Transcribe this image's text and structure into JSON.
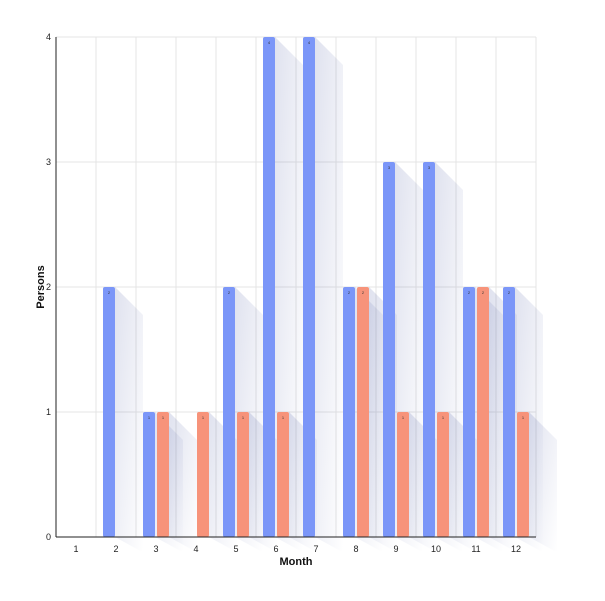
{
  "chart_data": {
    "type": "bar",
    "xlabel": "Month",
    "ylabel": "Persons",
    "categories": [
      "1",
      "2",
      "3",
      "4",
      "5",
      "6",
      "7",
      "8",
      "9",
      "10",
      "11",
      "12"
    ],
    "ylim": [
      0,
      4
    ],
    "yticks": [
      "0",
      "1",
      "2",
      "3",
      "4"
    ],
    "grid": true,
    "series": [
      {
        "values": [
          0,
          2,
          1,
          0,
          2,
          4,
          4,
          2,
          3,
          3,
          2,
          2
        ],
        "color": "#7b96f8"
      },
      {
        "values": [
          0,
          0,
          1,
          1,
          1,
          1,
          0,
          2,
          1,
          1,
          2,
          1
        ],
        "color": "#f7937a"
      }
    ]
  }
}
